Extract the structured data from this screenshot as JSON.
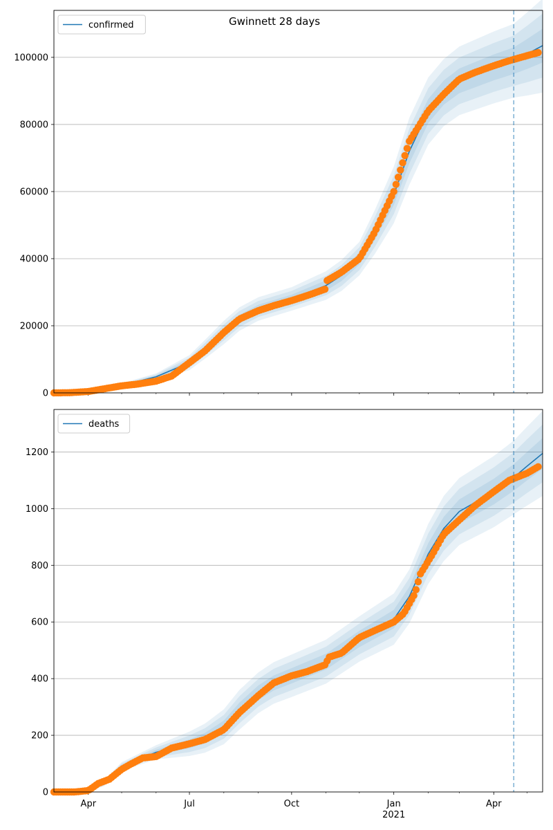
{
  "title": "Gwinnett 28 days",
  "colors": {
    "model": "#1f77b4",
    "observed": "#ff7f0e",
    "band": "#1f77b4",
    "grid": "#b0b0b0",
    "forecast_line": "#1f77b4"
  },
  "x_axis": {
    "start": "2020-03-01",
    "end": "2021-05-15",
    "ticks": [
      {
        "date": "2020-04-01",
        "label": "Apr",
        "sublabel": ""
      },
      {
        "date": "2020-07-01",
        "label": "Jul",
        "sublabel": ""
      },
      {
        "date": "2020-10-01",
        "label": "Oct",
        "sublabel": ""
      },
      {
        "date": "2021-01-01",
        "label": "Jan",
        "sublabel": "2021"
      },
      {
        "date": "2021-04-01",
        "label": "Apr",
        "sublabel": ""
      }
    ],
    "minor_ticks": [
      "2020-05-01",
      "2020-06-01",
      "2020-08-01",
      "2020-09-01",
      "2020-11-01",
      "2020-12-01",
      "2021-02-01",
      "2021-03-01",
      "2021-05-01"
    ],
    "forecast_start": "2021-04-19"
  },
  "chart_data": [
    {
      "type": "line",
      "legend": "confirmed",
      "legend_position": "top-left",
      "grid": true,
      "ylim": [
        0,
        114000
      ],
      "yticks": [
        0,
        20000,
        40000,
        60000,
        80000,
        100000
      ],
      "ytick_labels": [
        "0",
        "20000",
        "40000",
        "60000",
        "80000",
        "100000"
      ],
      "model": [
        [
          "2020-03-01",
          0
        ],
        [
          "2020-04-01",
          500
        ],
        [
          "2020-05-01",
          2200
        ],
        [
          "2020-06-01",
          4800
        ],
        [
          "2020-07-01",
          9000
        ],
        [
          "2020-07-15",
          13000
        ],
        [
          "2020-08-01",
          18000
        ],
        [
          "2020-08-15",
          22000
        ],
        [
          "2020-09-01",
          25000
        ],
        [
          "2020-10-01",
          28000
        ],
        [
          "2020-11-01",
          32000
        ],
        [
          "2020-11-15",
          35000
        ],
        [
          "2020-12-01",
          40000
        ],
        [
          "2020-12-15",
          48000
        ],
        [
          "2021-01-01",
          59000
        ],
        [
          "2021-01-15",
          72000
        ],
        [
          "2021-02-01",
          84000
        ],
        [
          "2021-02-15",
          89500
        ],
        [
          "2021-03-01",
          93000
        ],
        [
          "2021-04-01",
          97000
        ],
        [
          "2021-04-19",
          99000
        ],
        [
          "2021-05-01",
          101000
        ],
        [
          "2021-05-15",
          103500
        ]
      ],
      "band_halfwidths": [
        [
          "2020-03-01",
          0
        ],
        [
          "2020-06-01",
          1000
        ],
        [
          "2020-08-01",
          3500
        ],
        [
          "2020-10-01",
          3500
        ],
        [
          "2020-12-01",
          5000
        ],
        [
          "2021-01-15",
          10000
        ],
        [
          "2021-02-15",
          10000
        ],
        [
          "2021-04-19",
          11000
        ],
        [
          "2021-05-15",
          14000
        ]
      ],
      "observed": [
        [
          "2020-03-01",
          0
        ],
        [
          "2020-03-15",
          50
        ],
        [
          "2020-04-01",
          400
        ],
        [
          "2020-04-15",
          1200
        ],
        [
          "2020-05-01",
          2100
        ],
        [
          "2020-05-15",
          2600
        ],
        [
          "2020-06-01",
          3500
        ],
        [
          "2020-06-15",
          5000
        ],
        [
          "2020-07-01",
          9000
        ],
        [
          "2020-07-15",
          12500
        ],
        [
          "2020-08-01",
          18000
        ],
        [
          "2020-08-15",
          22000
        ],
        [
          "2020-09-01",
          24500
        ],
        [
          "2020-09-15",
          26000
        ],
        [
          "2020-10-01",
          27500
        ],
        [
          "2020-10-15",
          29000
        ],
        [
          "2020-11-01",
          31000
        ],
        [
          "2020-11-02",
          33500
        ],
        [
          "2020-11-15",
          36000
        ],
        [
          "2020-12-01",
          40000
        ],
        [
          "2020-12-15",
          48000
        ],
        [
          "2021-01-01",
          60000
        ],
        [
          "2021-01-15",
          75000
        ],
        [
          "2021-02-01",
          84000
        ],
        [
          "2021-02-15",
          89000
        ],
        [
          "2021-03-01",
          93500
        ],
        [
          "2021-03-15",
          95500
        ],
        [
          "2021-04-01",
          97500
        ],
        [
          "2021-04-15",
          99000
        ],
        [
          "2021-05-01",
          100500
        ],
        [
          "2021-05-12",
          101500
        ]
      ]
    },
    {
      "type": "line",
      "legend": "deaths",
      "legend_position": "top-left",
      "grid": true,
      "ylim": [
        0,
        1350
      ],
      "yticks": [
        0,
        200,
        400,
        600,
        800,
        1000,
        1200
      ],
      "ytick_labels": [
        "0",
        "200",
        "400",
        "600",
        "800",
        "1000",
        "1200"
      ],
      "model": [
        [
          "2020-03-01",
          0
        ],
        [
          "2020-03-25",
          0
        ],
        [
          "2020-04-15",
          30
        ],
        [
          "2020-05-01",
          90
        ],
        [
          "2020-06-01",
          140
        ],
        [
          "2020-07-01",
          170
        ],
        [
          "2020-07-15",
          190
        ],
        [
          "2020-08-01",
          230
        ],
        [
          "2020-08-15",
          290
        ],
        [
          "2020-09-01",
          350
        ],
        [
          "2020-09-15",
          385
        ],
        [
          "2020-10-01",
          410
        ],
        [
          "2020-11-01",
          460
        ],
        [
          "2020-12-01",
          540
        ],
        [
          "2021-01-01",
          610
        ],
        [
          "2021-01-15",
          690
        ],
        [
          "2021-02-01",
          840
        ],
        [
          "2021-02-15",
          930
        ],
        [
          "2021-03-01",
          990
        ],
        [
          "2021-04-01",
          1060
        ],
        [
          "2021-04-19",
          1110
        ],
        [
          "2021-05-01",
          1150
        ],
        [
          "2021-05-15",
          1195
        ]
      ],
      "band_halfwidths": [
        [
          "2020-03-01",
          0
        ],
        [
          "2020-04-15",
          10
        ],
        [
          "2020-06-01",
          25
        ],
        [
          "2020-08-15",
          70
        ],
        [
          "2020-10-01",
          75
        ],
        [
          "2020-12-01",
          80
        ],
        [
          "2021-01-15",
          95
        ],
        [
          "2021-02-15",
          115
        ],
        [
          "2021-04-19",
          130
        ],
        [
          "2021-05-15",
          150
        ]
      ],
      "observed": [
        [
          "2020-03-01",
          0
        ],
        [
          "2020-03-20",
          0
        ],
        [
          "2020-04-01",
          5
        ],
        [
          "2020-04-10",
          30
        ],
        [
          "2020-04-20",
          45
        ],
        [
          "2020-05-01",
          80
        ],
        [
          "2020-05-10",
          100
        ],
        [
          "2020-05-20",
          120
        ],
        [
          "2020-06-01",
          125
        ],
        [
          "2020-06-15",
          155
        ],
        [
          "2020-07-01",
          170
        ],
        [
          "2020-07-15",
          185
        ],
        [
          "2020-08-01",
          220
        ],
        [
          "2020-08-15",
          280
        ],
        [
          "2020-09-01",
          340
        ],
        [
          "2020-09-15",
          385
        ],
        [
          "2020-10-01",
          410
        ],
        [
          "2020-10-15",
          425
        ],
        [
          "2020-11-01",
          450
        ],
        [
          "2020-11-03",
          475
        ],
        [
          "2020-11-15",
          490
        ],
        [
          "2020-12-01",
          545
        ],
        [
          "2020-12-15",
          570
        ],
        [
          "2021-01-01",
          600
        ],
        [
          "2021-01-10",
          630
        ],
        [
          "2021-01-20",
          700
        ],
        [
          "2021-01-25",
          770
        ],
        [
          "2021-02-05",
          840
        ],
        [
          "2021-02-15",
          910
        ],
        [
          "2021-03-01",
          960
        ],
        [
          "2021-03-15",
          1010
        ],
        [
          "2021-04-01",
          1060
        ],
        [
          "2021-04-15",
          1100
        ],
        [
          "2021-05-01",
          1125
        ],
        [
          "2021-05-12",
          1150
        ]
      ]
    }
  ]
}
